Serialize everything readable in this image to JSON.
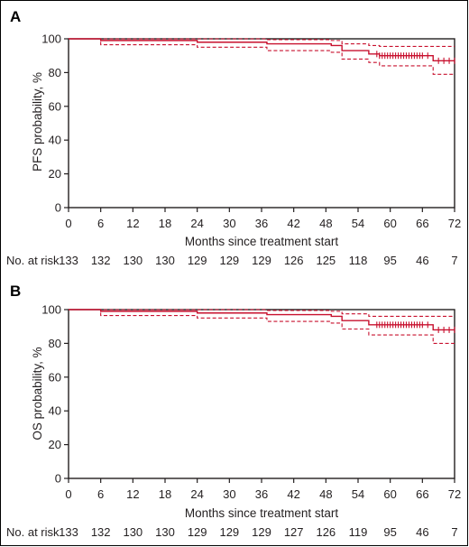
{
  "chart_data": [
    {
      "panel_label": "A",
      "type": "line",
      "subtype": "kaplan-meier",
      "xlabel": "Months since treatment start",
      "ylabel": "PFS probability, %",
      "xlim": [
        0,
        72
      ],
      "ylim": [
        0,
        100
      ],
      "xticks": [
        "0",
        "6",
        "12",
        "18",
        "24",
        "30",
        "36",
        "42",
        "48",
        "54",
        "60",
        "66",
        "72"
      ],
      "yticks": [
        "0",
        "20",
        "40",
        "60",
        "80",
        "100"
      ],
      "line_color": "#c8102e",
      "series": [
        {
          "role": "estimate",
          "style": "solid",
          "x": [
            0,
            6,
            24,
            37,
            49,
            51,
            56,
            58,
            68,
            72
          ],
          "y": [
            100,
            99,
            98,
            97,
            96,
            93,
            91,
            90,
            87,
            87
          ]
        },
        {
          "role": "ci-upper",
          "style": "dashed",
          "x": [
            0,
            6,
            24,
            37,
            49,
            51,
            56,
            58,
            68,
            72
          ],
          "y": [
            100,
            100,
            100,
            99.5,
            99,
            97,
            96,
            95.5,
            95.5,
            95.5
          ]
        },
        {
          "role": "ci-lower",
          "style": "dashed",
          "x": [
            0,
            6,
            24,
            37,
            49,
            51,
            56,
            58,
            68,
            72
          ],
          "y": [
            100,
            96.5,
            95,
            93,
            92,
            88,
            86,
            84,
            79,
            79
          ]
        }
      ],
      "censor_marks": [
        {
          "x": 57.5,
          "y": 91
        },
        {
          "x": 58,
          "y": 90
        },
        {
          "x": 58.5,
          "y": 90
        },
        {
          "x": 59,
          "y": 90
        },
        {
          "x": 59.5,
          "y": 90
        },
        {
          "x": 60,
          "y": 90
        },
        {
          "x": 60.5,
          "y": 90
        },
        {
          "x": 61,
          "y": 90
        },
        {
          "x": 61.5,
          "y": 90
        },
        {
          "x": 62,
          "y": 90
        },
        {
          "x": 62.5,
          "y": 90
        },
        {
          "x": 63,
          "y": 90
        },
        {
          "x": 63.5,
          "y": 90
        },
        {
          "x": 64,
          "y": 90
        },
        {
          "x": 64.5,
          "y": 90
        },
        {
          "x": 65,
          "y": 90
        },
        {
          "x": 65.5,
          "y": 90
        },
        {
          "x": 66,
          "y": 90
        },
        {
          "x": 67,
          "y": 90
        },
        {
          "x": 69,
          "y": 87
        },
        {
          "x": 70,
          "y": 87
        },
        {
          "x": 71,
          "y": 87
        },
        {
          "x": 72,
          "y": 87
        }
      ],
      "risk_label": "No. at risk",
      "risk_values": [
        "133",
        "132",
        "130",
        "130",
        "129",
        "129",
        "129",
        "126",
        "125",
        "118",
        "95",
        "46",
        "7"
      ]
    },
    {
      "panel_label": "B",
      "type": "line",
      "subtype": "kaplan-meier",
      "xlabel": "Months since treatment start",
      "ylabel": "OS probability, %",
      "xlim": [
        0,
        72
      ],
      "ylim": [
        0,
        100
      ],
      "xticks": [
        "0",
        "6",
        "12",
        "18",
        "24",
        "30",
        "36",
        "42",
        "48",
        "54",
        "60",
        "66",
        "72"
      ],
      "yticks": [
        "0",
        "20",
        "40",
        "60",
        "80",
        "100"
      ],
      "line_color": "#c8102e",
      "series": [
        {
          "role": "estimate",
          "style": "solid",
          "x": [
            0,
            6,
            24,
            37,
            49,
            51,
            56,
            68,
            72
          ],
          "y": [
            100,
            99,
            98,
            97,
            96,
            93.5,
            91,
            88,
            88
          ]
        },
        {
          "role": "ci-upper",
          "style": "dashed",
          "x": [
            0,
            6,
            24,
            37,
            49,
            51,
            56,
            68,
            72
          ],
          "y": [
            100,
            100,
            100,
            99.5,
            99,
            97.5,
            96,
            96,
            96
          ]
        },
        {
          "role": "ci-lower",
          "style": "dashed",
          "x": [
            0,
            6,
            24,
            37,
            49,
            51,
            56,
            68,
            72
          ],
          "y": [
            100,
            96.5,
            95,
            93,
            92,
            88.5,
            85,
            80,
            80
          ]
        }
      ],
      "censor_marks": [
        {
          "x": 57.5,
          "y": 91
        },
        {
          "x": 58,
          "y": 91
        },
        {
          "x": 58.5,
          "y": 91
        },
        {
          "x": 59,
          "y": 91
        },
        {
          "x": 59.5,
          "y": 91
        },
        {
          "x": 60,
          "y": 91
        },
        {
          "x": 60.5,
          "y": 91
        },
        {
          "x": 61,
          "y": 91
        },
        {
          "x": 61.5,
          "y": 91
        },
        {
          "x": 62,
          "y": 91
        },
        {
          "x": 62.5,
          "y": 91
        },
        {
          "x": 63,
          "y": 91
        },
        {
          "x": 63.5,
          "y": 91
        },
        {
          "x": 64,
          "y": 91
        },
        {
          "x": 64.5,
          "y": 91
        },
        {
          "x": 65,
          "y": 91
        },
        {
          "x": 65.5,
          "y": 91
        },
        {
          "x": 66,
          "y": 91
        },
        {
          "x": 67,
          "y": 91
        },
        {
          "x": 69,
          "y": 88
        },
        {
          "x": 70,
          "y": 88
        },
        {
          "x": 71,
          "y": 88
        },
        {
          "x": 72,
          "y": 88
        }
      ],
      "risk_label": "No. at risk",
      "risk_values": [
        "133",
        "132",
        "130",
        "130",
        "129",
        "129",
        "129",
        "127",
        "126",
        "119",
        "95",
        "46",
        "7"
      ]
    }
  ]
}
